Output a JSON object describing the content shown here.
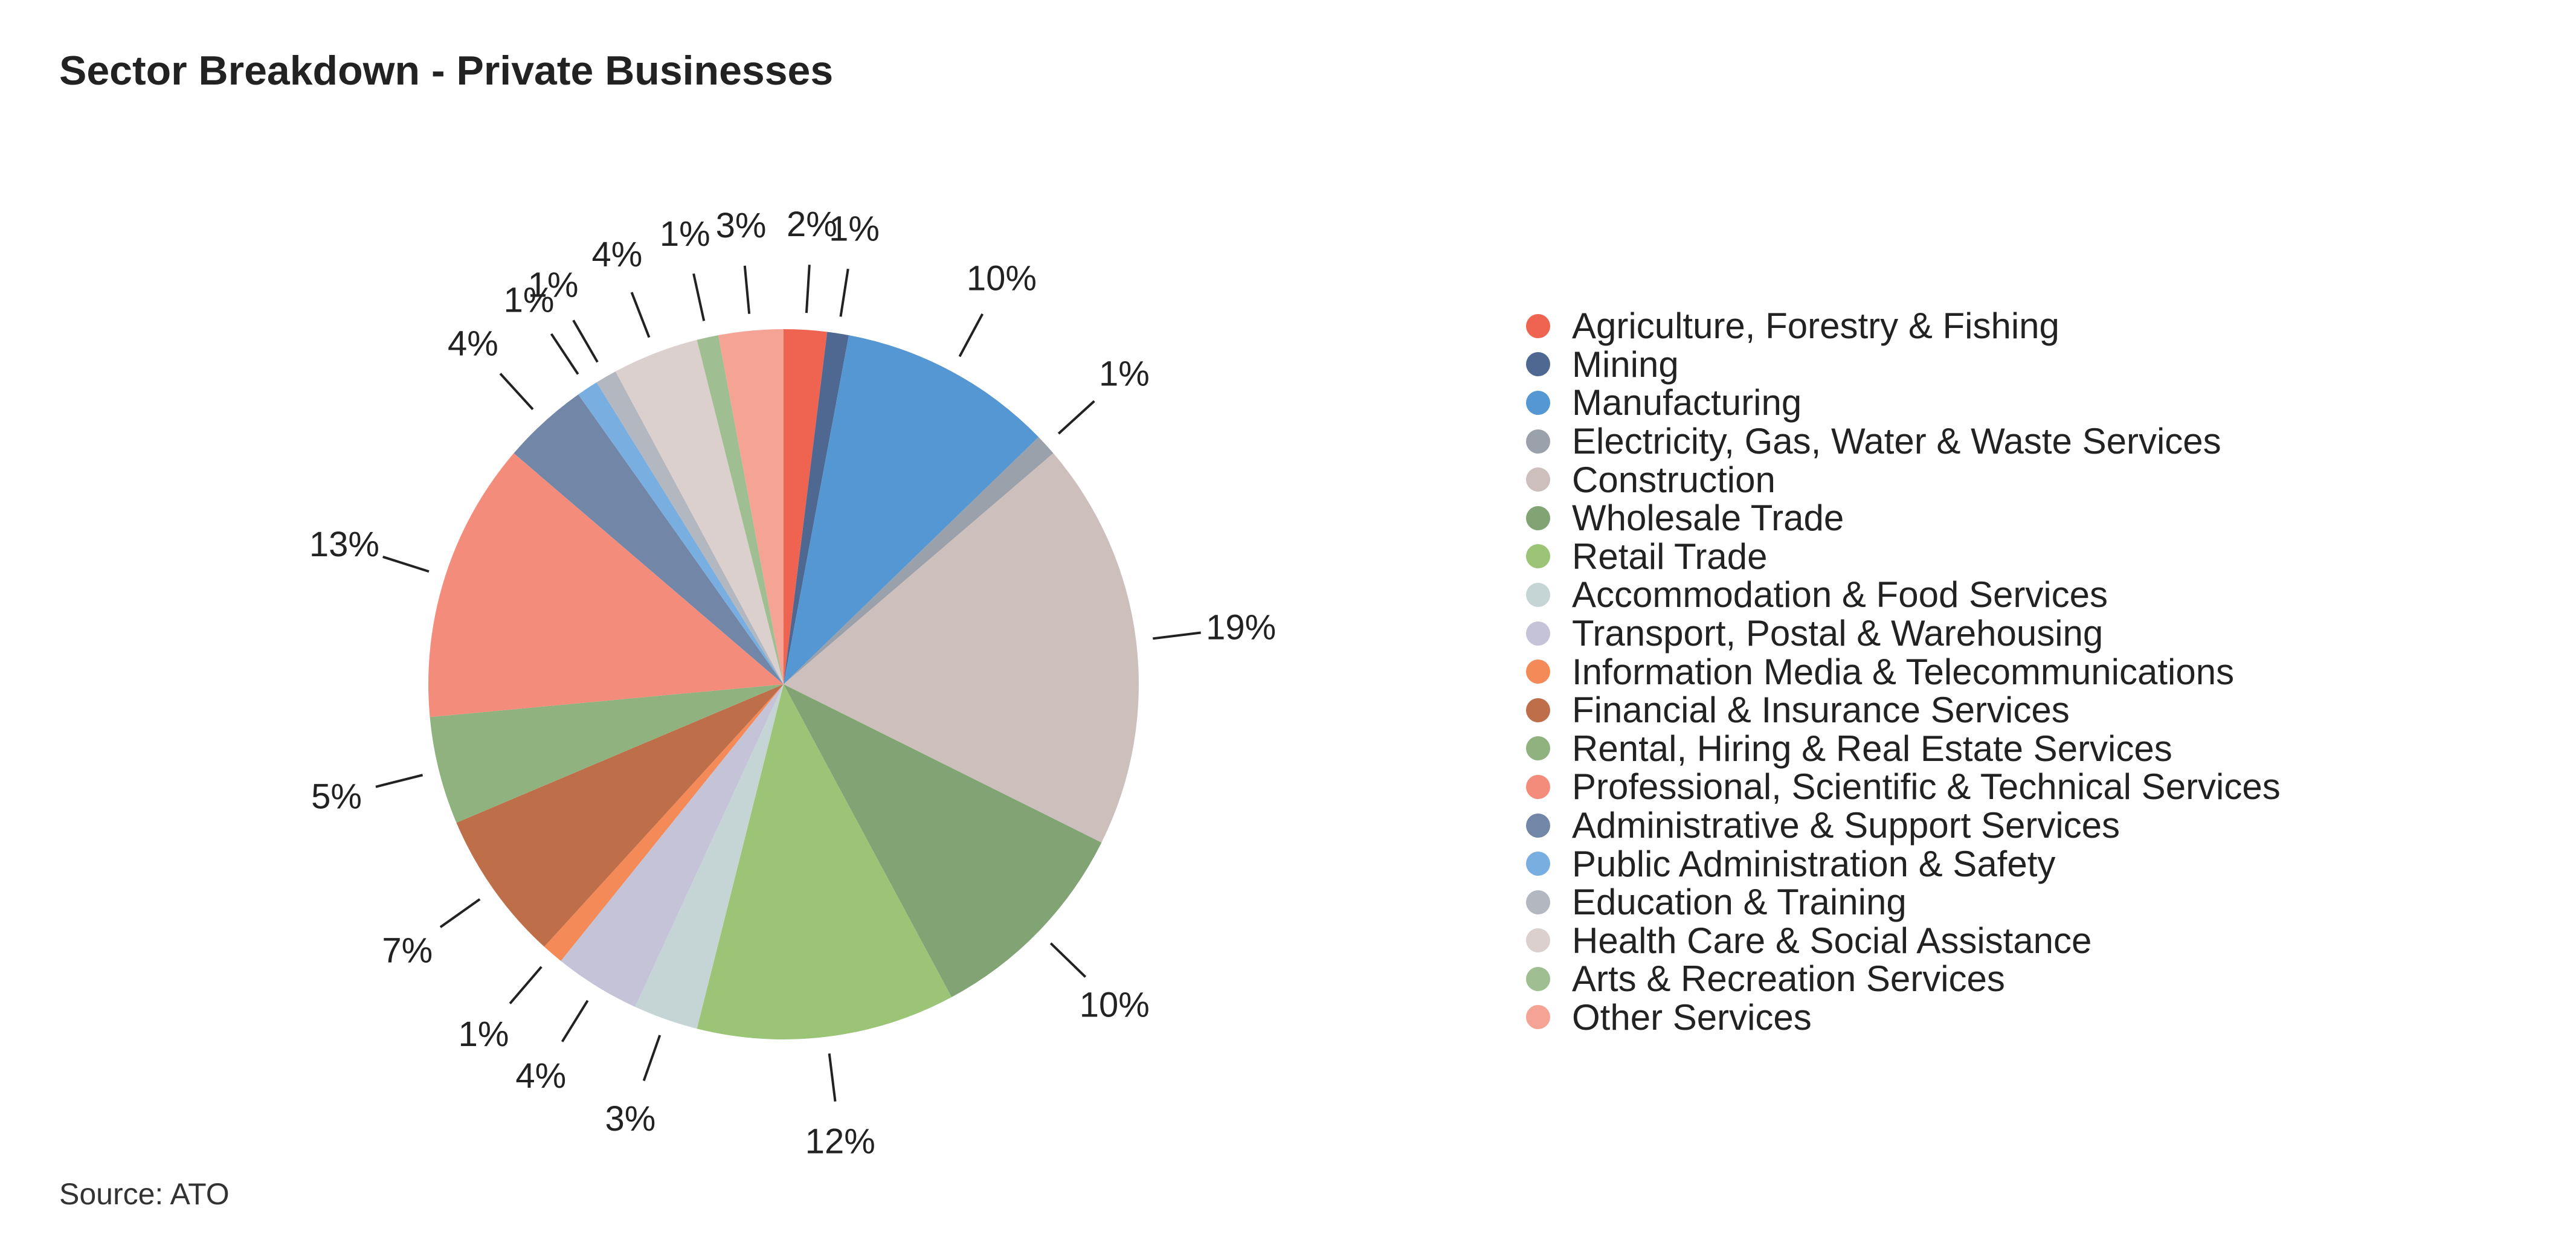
{
  "chart_data": {
    "type": "pie",
    "title": "Sector Breakdown - Private Businesses",
    "source": "Source: ATO",
    "legend_position": "right",
    "slices": [
      {
        "label": "Agriculture, Forestry & Fishing",
        "value": 2,
        "value_label": "2%",
        "color": "#ef6351"
      },
      {
        "label": "Mining",
        "value": 1,
        "value_label": "1%",
        "color": "#4f6891"
      },
      {
        "label": "Manufacturing",
        "value": 10,
        "value_label": "10%",
        "color": "#5497d3"
      },
      {
        "label": "Electricity, Gas, Water & Waste Services",
        "value": 1,
        "value_label": "1%",
        "color": "#9aa1ab"
      },
      {
        "label": "Construction",
        "value": 19,
        "value_label": "19%",
        "color": "#cdbfbc"
      },
      {
        "label": "Wholesale Trade",
        "value": 10,
        "value_label": "10%",
        "color": "#82a474"
      },
      {
        "label": "Retail Trade",
        "value": 12,
        "value_label": "12%",
        "color": "#9bc476"
      },
      {
        "label": "Accommodation & Food Services",
        "value": 3,
        "value_label": "3%",
        "color": "#c5d5d5"
      },
      {
        "label": "Transport, Postal & Warehousing",
        "value": 4,
        "value_label": "4%",
        "color": "#c4c3d8"
      },
      {
        "label": "Information Media & Telecommunications",
        "value": 1,
        "value_label": "1%",
        "color": "#f38a57"
      },
      {
        "label": "Financial & Insurance Services",
        "value": 7,
        "value_label": "7%",
        "color": "#bf6e4a"
      },
      {
        "label": "Rental, Hiring & Real Estate Services",
        "value": 5,
        "value_label": "5%",
        "color": "#8fb27f"
      },
      {
        "label": "Professional, Scientific & Technical Services",
        "value": 13,
        "value_label": "13%",
        "color": "#f48c7c"
      },
      {
        "label": "Administrative & Support Services",
        "value": 4,
        "value_label": "4%",
        "color": "#7287a8"
      },
      {
        "label": "Public Administration & Safety",
        "value": 1,
        "value_label": "1%",
        "color": "#79aee0"
      },
      {
        "label": "Education & Training",
        "value": 1,
        "value_label": "1%",
        "color": "#b3b7c0"
      },
      {
        "label": "Health Care & Social Assistance",
        "value": 4,
        "value_label": "4%",
        "color": "#dbd0cd"
      },
      {
        "label": "Arts & Recreation Services",
        "value": 1,
        "value_label": "1%",
        "color": "#9fbf92"
      },
      {
        "label": "Other Services",
        "value": 3,
        "value_label": "3%",
        "color": "#f5a395"
      }
    ]
  }
}
